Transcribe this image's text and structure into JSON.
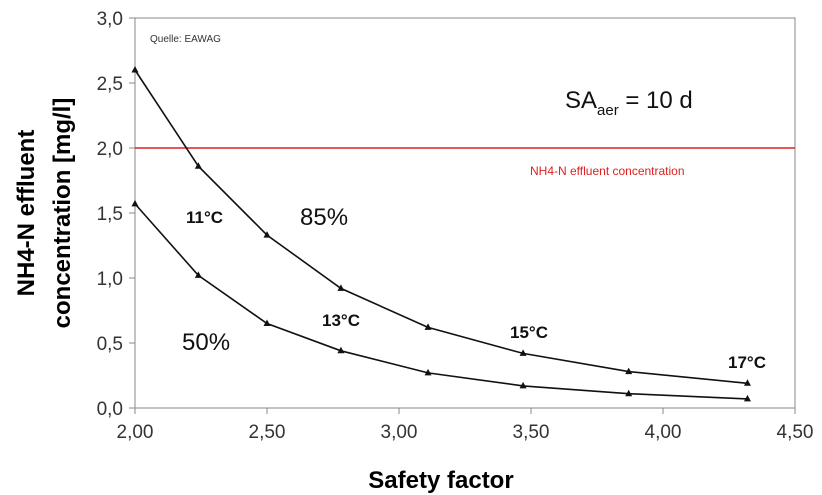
{
  "chart_data": {
    "type": "line",
    "xlabel": "Safety factor",
    "ylabel_lines": [
      "NH4-N effluent",
      "concentration [mg/l]"
    ],
    "xlim": [
      2.0,
      4.5
    ],
    "ylim": [
      0.0,
      3.0
    ],
    "x_ticks": [
      2.0,
      2.5,
      3.0,
      3.5,
      4.0,
      4.5
    ],
    "x_tick_labels": [
      "2,00",
      "2,50",
      "3,00",
      "3,50",
      "4,00",
      "4,50"
    ],
    "y_ticks": [
      0.0,
      0.5,
      1.0,
      1.5,
      2.0,
      2.5,
      3.0
    ],
    "y_tick_labels": [
      "0,0",
      "0,5",
      "1,0",
      "1,5",
      "2,0",
      "2,5",
      "3,0"
    ],
    "grid": false,
    "series": [
      {
        "name": "85%",
        "color": "#111111",
        "x": [
          2.0,
          2.24,
          2.5,
          2.78,
          3.11,
          3.47,
          3.87,
          4.32
        ],
        "y": [
          2.6,
          1.86,
          1.33,
          0.92,
          0.62,
          0.42,
          0.28,
          0.19
        ]
      },
      {
        "name": "50%",
        "color": "#111111",
        "x": [
          2.0,
          2.24,
          2.5,
          2.78,
          3.11,
          3.47,
          3.87,
          4.32
        ],
        "y": [
          1.57,
          1.02,
          0.65,
          0.44,
          0.27,
          0.17,
          0.11,
          0.07
        ]
      }
    ],
    "reference_line": {
      "y": 2.0,
      "color": "#e02020",
      "label": "NH4-N effluent concentration"
    },
    "annotations": {
      "source": "Quelle: EAWAG",
      "sa_main": "SA",
      "sa_sub": "aer",
      "sa_rest": " = 10 d",
      "percent_85": "85%",
      "percent_50": "50%",
      "temperatures": [
        "11°C",
        "13°C",
        "15°C",
        "17°C"
      ]
    }
  }
}
